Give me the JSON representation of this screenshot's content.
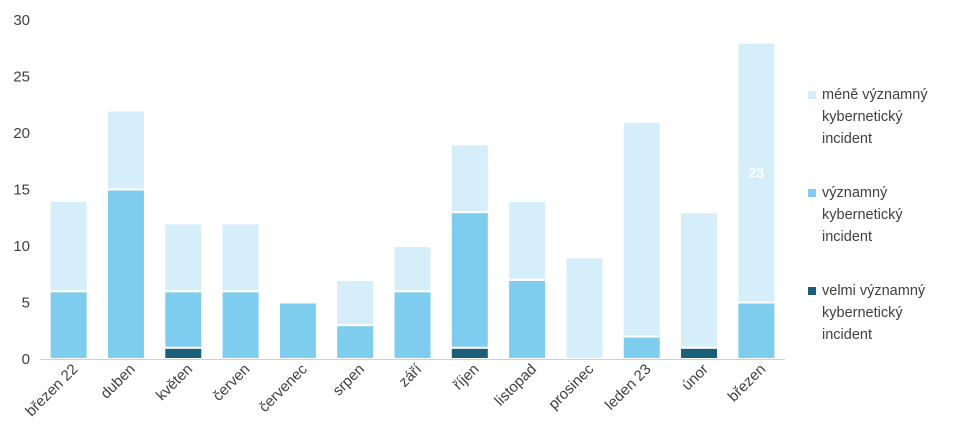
{
  "chart_data": {
    "type": "bar",
    "stacked": true,
    "categories": [
      "březen 22",
      "duben",
      "květen",
      "červen",
      "červenec",
      "srpen",
      "září",
      "říjen",
      "listopad",
      "prosinec",
      "leden 23",
      "únor",
      "březen"
    ],
    "series": [
      {
        "name": "velmi významný kybernetický incident",
        "color": "#1a5f7a",
        "values": [
          0,
          0,
          1,
          0,
          0,
          0,
          0,
          1,
          0,
          0,
          0,
          1,
          0
        ]
      },
      {
        "name": "významný kybernetický incident",
        "color": "#7fcdee",
        "values": [
          6,
          15,
          5,
          6,
          5,
          3,
          6,
          12,
          7,
          0,
          2,
          0,
          5
        ]
      },
      {
        "name": "méně významný kybernetický incident",
        "color": "#d5eef9",
        "values": [
          8,
          7,
          6,
          6,
          0,
          4,
          4,
          6,
          7,
          9,
          19,
          12,
          23
        ]
      }
    ],
    "data_labels": [
      {
        "series": 2,
        "category": 12,
        "text": "23"
      }
    ],
    "yticks": [
      "0",
      "5",
      "10",
      "15",
      "20",
      "25",
      "30"
    ],
    "ylim": [
      0,
      30
    ],
    "legend_position": "right",
    "grid": false
  }
}
